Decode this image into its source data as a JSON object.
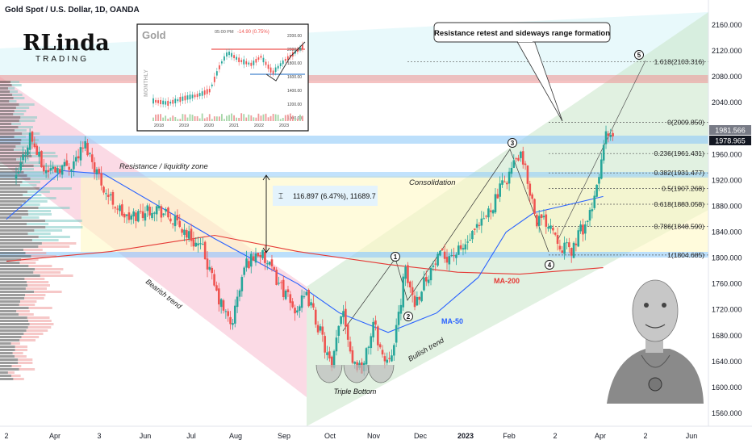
{
  "header": {
    "title": "Gold Spot / U.S. Dollar, 1D, OANDA"
  },
  "logo": {
    "line1": "RLinda",
    "line2": "TRADING"
  },
  "inset": {
    "title": "Gold",
    "timeframe": "MONTHLY",
    "info": "05:00 PM",
    "change": "-14.90 (0.75%)",
    "x_ticks": [
      "2018",
      "2019",
      "2020",
      "2021",
      "2022",
      "2023"
    ],
    "y_ticks": [
      "2200.00",
      "2000.00",
      "1800.00",
      "1600.00",
      "1400.00",
      "1200.00",
      "1000.00"
    ]
  },
  "colors": {
    "up": "#26a69a",
    "down": "#ef5350",
    "ma200": "#e53935",
    "ma50": "#2962ff",
    "resistance_zone": "#90caf9",
    "top_zone": "#ef9a9a",
    "bearish_channel": "#f8bbd0",
    "bullish_channel": "#c8e6c9",
    "consolidation": "#fff9c4"
  },
  "annotations": {
    "callout": "Resistance retest and sideways range formation",
    "resistance": "Resistance / liquidity zone",
    "consolidation": "Consolidation",
    "bearish": "Bearish trend",
    "bullish": "Bullish trend",
    "triple_bottom": "Triple Bottom",
    "ma200": "MA-200",
    "ma50": "MA-50",
    "measure": "116.897 (6.47%), 11689.7",
    "waves": [
      "1",
      "2",
      "3",
      "4",
      "5"
    ]
  },
  "fibonacci": [
    {
      "label": "0(2009.850)",
      "value": 2009.85
    },
    {
      "label": "0.236(1961.431)",
      "value": 1961.431
    },
    {
      "label": "0.382(1931.477)",
      "value": 1931.477
    },
    {
      "label": "0.5(1907.268)",
      "value": 1907.268
    },
    {
      "label": "0.618(1883.058)",
      "value": 1883.058
    },
    {
      "label": "0.786(1848.590)",
      "value": 1848.59
    },
    {
      "label": "1(1804.685)",
      "value": 1804.685
    },
    {
      "label": "1.618(2103.316)",
      "value": 2103.316
    }
  ],
  "price_badges": [
    "1981.566",
    "1978.965"
  ],
  "chart_data": {
    "type": "candlestick",
    "title": "Gold Spot / U.S. Dollar, 1D, OANDA",
    "x_tick_labels": [
      "2",
      "Apr",
      "3",
      "Jun",
      "Jul",
      "Aug",
      "Sep",
      "Oct",
      "Nov",
      "Dec",
      "2023",
      "Feb",
      "2",
      "Apr",
      "2",
      "Jun"
    ],
    "y_tick_labels": [
      "2160.000",
      "2120.000",
      "2080.000",
      "2040.000",
      "2000.000",
      "1960.000",
      "1920.000",
      "1880.000",
      "1840.000",
      "1800.000",
      "1760.000",
      "1720.000",
      "1680.000",
      "1640.000",
      "1600.000",
      "1560.000"
    ],
    "ylim": [
      1545,
      2175
    ],
    "price_path": [
      [
        0,
        1920
      ],
      [
        0.02,
        1990
      ],
      [
        0.04,
        1935
      ],
      [
        0.08,
        1945
      ],
      [
        0.1,
        1975
      ],
      [
        0.13,
        1900
      ],
      [
        0.16,
        1860
      ],
      [
        0.2,
        1880
      ],
      [
        0.24,
        1845
      ],
      [
        0.27,
        1810
      ],
      [
        0.29,
        1740
      ],
      [
        0.31,
        1695
      ],
      [
        0.33,
        1790
      ],
      [
        0.35,
        1810
      ],
      [
        0.38,
        1760
      ],
      [
        0.4,
        1720
      ],
      [
        0.42,
        1740
      ],
      [
        0.44,
        1680
      ],
      [
        0.455,
        1625
      ],
      [
        0.47,
        1730
      ],
      [
        0.485,
        1640
      ],
      [
        0.5,
        1630
      ],
      [
        0.515,
        1700
      ],
      [
        0.53,
        1640
      ],
      [
        0.545,
        1665
      ],
      [
        0.56,
        1780
      ],
      [
        0.575,
        1730
      ],
      [
        0.59,
        1770
      ],
      [
        0.61,
        1800
      ],
      [
        0.64,
        1810
      ],
      [
        0.67,
        1850
      ],
      [
        0.69,
        1890
      ],
      [
        0.71,
        1930
      ],
      [
        0.725,
        1960
      ],
      [
        0.735,
        1930
      ],
      [
        0.75,
        1860
      ],
      [
        0.77,
        1855
      ],
      [
        0.785,
        1820
      ],
      [
        0.8,
        1810
      ],
      [
        0.81,
        1835
      ],
      [
        0.83,
        1870
      ],
      [
        0.84,
        1930
      ],
      [
        0.85,
        1990
      ],
      [
        0.86,
        1978.965
      ]
    ],
    "ma200_path": [
      [
        0,
        1795
      ],
      [
        0.15,
        1810
      ],
      [
        0.3,
        1835
      ],
      [
        0.42,
        1810
      ],
      [
        0.55,
        1790
      ],
      [
        0.65,
        1778
      ],
      [
        0.74,
        1775
      ],
      [
        0.86,
        1785
      ]
    ],
    "ma50_path": [
      [
        0,
        1860
      ],
      [
        0.08,
        1935
      ],
      [
        0.14,
        1930
      ],
      [
        0.22,
        1880
      ],
      [
        0.3,
        1830
      ],
      [
        0.36,
        1795
      ],
      [
        0.42,
        1760
      ],
      [
        0.48,
        1715
      ],
      [
        0.55,
        1685
      ],
      [
        0.62,
        1715
      ],
      [
        0.68,
        1770
      ],
      [
        0.72,
        1840
      ],
      [
        0.76,
        1870
      ],
      [
        0.8,
        1880
      ],
      [
        0.86,
        1895
      ]
    ],
    "last_price": 1978.965,
    "grid": false,
    "legend": "none"
  }
}
